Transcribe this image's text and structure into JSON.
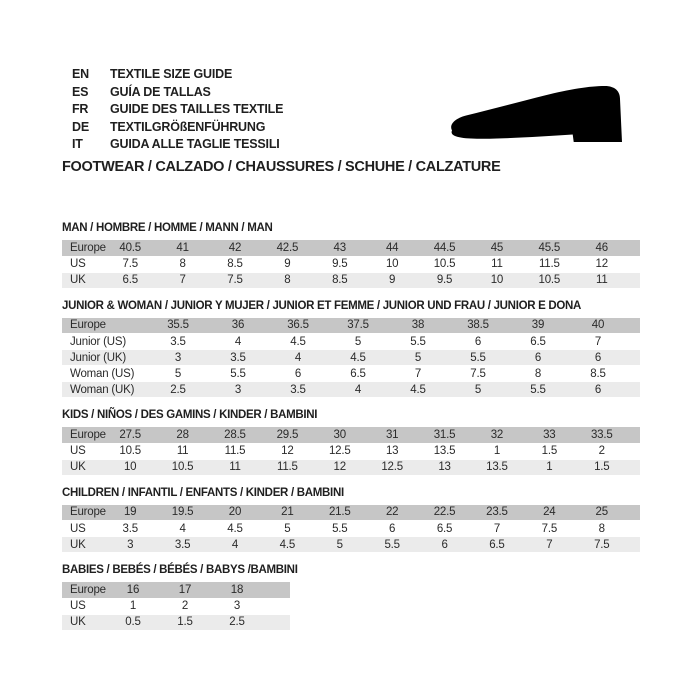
{
  "colors": {
    "background": "#ffffff",
    "text": "#1f1f1f",
    "table_header_row_bg": "#c6c6c6",
    "table_alt_row_bg": "#ebebeb",
    "shoe_icon": "#000000"
  },
  "language_guide": {
    "items": [
      {
        "code": "EN",
        "label": "TEXTILE SIZE GUIDE"
      },
      {
        "code": "ES",
        "label": "GUÍA DE TALLAS"
      },
      {
        "code": "FR",
        "label": "GUIDE DES TAILLES TEXTILE"
      },
      {
        "code": "DE",
        "label": "TEXTILGRÖßENFÜHRUNG"
      },
      {
        "code": "IT",
        "label": "GUIDA ALLE TAGLIE TESSILI"
      }
    ]
  },
  "category_heading": "FOOTWEAR / CALZADO / CHAUSSURES / SCHUHE / CALZATURE",
  "icons": {
    "shoe": "dress-shoe-silhouette"
  },
  "tables": [
    {
      "title": "MAN / HOMBRE / HOMME / MANN / MAN",
      "rows": [
        {
          "label": "Europe",
          "header": true,
          "values": [
            "40.5",
            "41",
            "42",
            "42.5",
            "43",
            "44",
            "44.5",
            "45",
            "45.5",
            "46"
          ]
        },
        {
          "label": "US",
          "values": [
            "7.5",
            "8",
            "8.5",
            "9",
            "9.5",
            "10",
            "10.5",
            "11",
            "11.5",
            "12"
          ]
        },
        {
          "label": "UK",
          "values": [
            "6.5",
            "7",
            "7.5",
            "8",
            "8.5",
            "9",
            "9.5",
            "10",
            "10.5",
            "11"
          ]
        }
      ]
    },
    {
      "title": "JUNIOR & WOMAN / JUNIOR Y MUJER / JUNIOR ET FEMME / JUNIOR UND FRAU / JUNIOR E DONA",
      "rows": [
        {
          "label": "Europe",
          "header": true,
          "values": [
            "35.5",
            "36",
            "36.5",
            "37.5",
            "38",
            "38.5",
            "39",
            "40"
          ]
        },
        {
          "label": "Junior (US)",
          "values": [
            "3.5",
            "4",
            "4.5",
            "5",
            "5.5",
            "6",
            "6.5",
            "7"
          ]
        },
        {
          "label": "Junior (UK)",
          "values": [
            "3",
            "3.5",
            "4",
            "4.5",
            "5",
            "5.5",
            "6",
            "6"
          ]
        },
        {
          "label": "Woman (US)",
          "values": [
            "5",
            "5.5",
            "6",
            "6.5",
            "7",
            "7.5",
            "8",
            "8.5"
          ]
        },
        {
          "label": "Woman (UK)",
          "values": [
            "2.5",
            "3",
            "3.5",
            "4",
            "4.5",
            "5",
            "5.5",
            "6"
          ]
        }
      ]
    },
    {
      "title": "KIDS / NIÑOS / DES GAMINS / KINDER / BAMBINI",
      "rows": [
        {
          "label": "Europe",
          "header": true,
          "values": [
            "27.5",
            "28",
            "28.5",
            "29.5",
            "30",
            "31",
            "31.5",
            "32",
            "33",
            "33.5"
          ]
        },
        {
          "label": "US",
          "values": [
            "10.5",
            "11",
            "11.5",
            "12",
            "12.5",
            "13",
            "13.5",
            "1",
            "1.5",
            "2"
          ]
        },
        {
          "label": "UK",
          "values": [
            "10",
            "10.5",
            "11",
            "11.5",
            "12",
            "12.5",
            "13",
            "13.5",
            "1",
            "1.5"
          ]
        }
      ]
    },
    {
      "title": "CHILDREN / INFANTIL / ENFANTS / KINDER / BAMBINI",
      "rows": [
        {
          "label": "Europe",
          "header": true,
          "values": [
            "19",
            "19.5",
            "20",
            "21",
            "21.5",
            "22",
            "22.5",
            "23.5",
            "24",
            "25"
          ]
        },
        {
          "label": "US",
          "values": [
            "3.5",
            "4",
            "4.5",
            "5",
            "5.5",
            "6",
            "6.5",
            "7",
            "7.5",
            "8"
          ]
        },
        {
          "label": "UK",
          "values": [
            "3",
            "3.5",
            "4",
            "4.5",
            "5",
            "5.5",
            "6",
            "6.5",
            "7",
            "7.5"
          ]
        }
      ]
    },
    {
      "title": "BABIES / BEBÉS / BÉBÉS / BABYS /BAMBINI",
      "rows": [
        {
          "label": "Europe",
          "header": true,
          "values": [
            "16",
            "17",
            "18"
          ]
        },
        {
          "label": "US",
          "values": [
            "1",
            "2",
            "3"
          ]
        },
        {
          "label": "UK",
          "values": [
            "0.5",
            "1.5",
            "2.5"
          ]
        }
      ]
    }
  ]
}
